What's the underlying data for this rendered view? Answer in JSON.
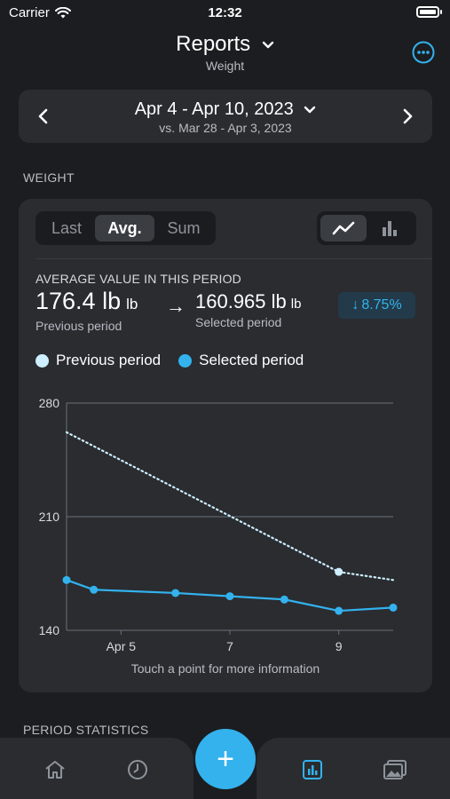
{
  "status_bar": {
    "carrier": "Carrier",
    "time": "12:32"
  },
  "header": {
    "title": "Reports",
    "subtitle": "Weight"
  },
  "date_selector": {
    "range": "Apr 4 - Apr 10, 2023",
    "compare": "vs. Mar 28 - Apr 3, 2023"
  },
  "sections": {
    "weight": "WEIGHT",
    "period_statistics": "PERIOD STATISTICS"
  },
  "card": {
    "aggregation_options": [
      "Last",
      "Avg.",
      "Sum"
    ],
    "selected_aggregation": "Avg.",
    "chart_modes": [
      "line-chart-icon",
      "bar-chart-icon"
    ],
    "selected_chart_mode": "line-chart-icon",
    "average_title": "AVERAGE VALUE IN THIS PERIOD",
    "previous_value": "176.4 lb",
    "previous_unit": "lb",
    "previous_caption": "Previous period",
    "arrow": "→",
    "selected_value": "160.965 lb",
    "selected_unit": "lb",
    "selected_caption": "Selected period",
    "change": "8.75%",
    "change_arrow": "↓",
    "legend": {
      "previous": "Previous period",
      "selected": "Selected period"
    },
    "hint": "Touch a point for more information"
  },
  "colors": {
    "background": "#1c1d20",
    "card": "#2a2c30",
    "accent": "#33b2ee",
    "previous_series": "#cdefff",
    "selected_series": "#33b2ee",
    "change_badge_bg": "#223a4a"
  },
  "chart_data": {
    "type": "line",
    "x_ticks": [
      "Apr 5",
      "7",
      "9"
    ],
    "y_ticks": [
      "280",
      "210",
      "140"
    ],
    "ylim": [
      140,
      280
    ],
    "xlim": [
      4,
      10
    ],
    "series": [
      {
        "name": "Previous period",
        "style": "dotted",
        "points": [
          [
            4,
            262
          ],
          [
            9,
            176
          ],
          [
            10,
            171
          ]
        ],
        "highlight_index": 1
      },
      {
        "name": "Selected period",
        "style": "solid",
        "points": [
          [
            4,
            171
          ],
          [
            4.5,
            165
          ],
          [
            6,
            163
          ],
          [
            7,
            161
          ],
          [
            8,
            159
          ],
          [
            9,
            152
          ],
          [
            10,
            154
          ]
        ]
      }
    ]
  },
  "tab_bar": {
    "items": [
      "home-icon",
      "history-icon",
      "add-button",
      "reports-icon",
      "gallery-icon"
    ],
    "add_label": "+",
    "active": "reports-icon"
  }
}
